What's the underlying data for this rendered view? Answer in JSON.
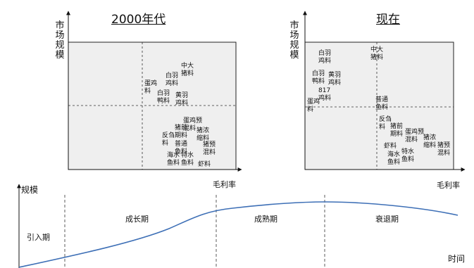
{
  "left_matrix": {
    "title": "2000年代",
    "y_axis_label": "市场规模",
    "x_axis_label": "毛利率",
    "items": [
      {
        "lines": [
          "中大",
          "猪料"
        ]
      },
      {
        "lines": [
          "白羽",
          "鸡料"
        ]
      },
      {
        "lines": [
          "蛋鸡",
          "料"
        ]
      },
      {
        "lines": [
          "白羽",
          "鸭料"
        ]
      },
      {
        "lines": [
          "黄羽",
          "鸡料"
        ]
      },
      {
        "lines": [
          "蛋鸡预",
          "混料"
        ]
      },
      {
        "lines": [
          "猪前",
          "期料"
        ]
      },
      {
        "lines": [
          "猪浓",
          "缩料"
        ]
      },
      {
        "lines": [
          "反刍",
          "料"
        ]
      },
      {
        "lines": [
          "普通",
          "鱼料"
        ]
      },
      {
        "lines": [
          "猪预",
          "混料"
        ]
      },
      {
        "lines": [
          "海水",
          "鱼料"
        ]
      },
      {
        "lines": [
          "特水",
          "鱼料"
        ]
      },
      {
        "lines": [
          "虾料"
        ]
      }
    ]
  },
  "right_matrix": {
    "title": "现在",
    "y_axis_label": "市场规模",
    "x_axis_label": "毛利率",
    "items": [
      {
        "lines": [
          "白羽",
          "鸡料"
        ]
      },
      {
        "lines": [
          "中大",
          "猪料"
        ]
      },
      {
        "lines": [
          "白羽",
          "鸭料"
        ]
      },
      {
        "lines": [
          "黄羽",
          "鸡料"
        ]
      },
      {
        "lines": [
          "817",
          "鸡料"
        ]
      },
      {
        "lines": [
          "蛋鸡",
          "料"
        ]
      },
      {
        "lines": [
          "普通",
          "鱼料"
        ]
      },
      {
        "lines": [
          "反刍",
          "料"
        ]
      },
      {
        "lines": [
          "猪前",
          "期料"
        ]
      },
      {
        "lines": [
          "蛋鸡预",
          "混料"
        ]
      },
      {
        "lines": [
          "猪浓",
          "缩料"
        ]
      },
      {
        "lines": [
          "虾料"
        ]
      },
      {
        "lines": [
          "猪预",
          "混料"
        ]
      },
      {
        "lines": [
          "海水",
          "鱼料"
        ]
      },
      {
        "lines": [
          "特水",
          "鱼料"
        ]
      }
    ]
  },
  "lifecycle": {
    "y_axis_label": "规模",
    "x_axis_label": "时间",
    "stages": [
      "引入期",
      "成长期",
      "成熟期",
      "衰退期"
    ]
  }
}
